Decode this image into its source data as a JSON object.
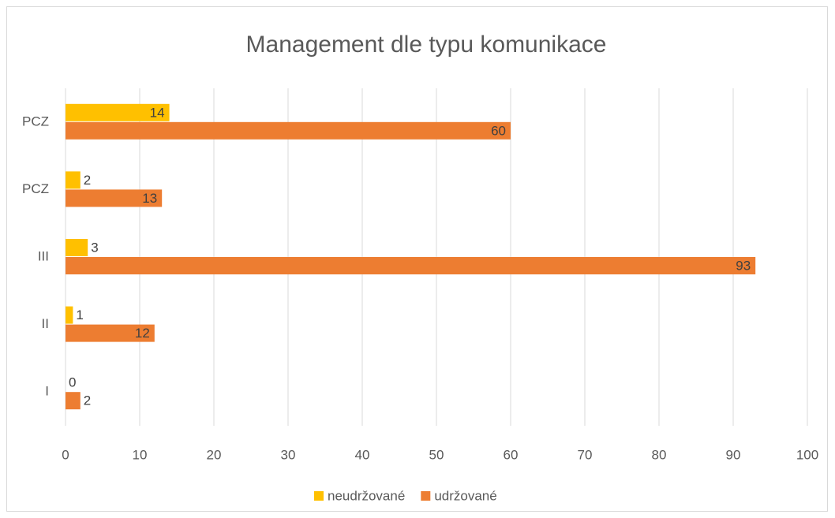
{
  "chart_data": {
    "type": "bar",
    "orientation": "horizontal",
    "title": "Management dle typu komunikace",
    "categories": [
      "I",
      "II",
      "III",
      "PCZ",
      "PCZ"
    ],
    "series": [
      {
        "name": "neudržované",
        "color": "#ffc000",
        "values": [
          0,
          1,
          3,
          2,
          14
        ]
      },
      {
        "name": "udržované",
        "color": "#ed7d31",
        "values": [
          2,
          12,
          93,
          13,
          60
        ]
      }
    ],
    "xlim": [
      0,
      100
    ],
    "xticks": [
      0,
      10,
      20,
      30,
      40,
      50,
      60,
      70,
      80,
      90,
      100
    ],
    "grid": true,
    "legend": "bottom"
  }
}
